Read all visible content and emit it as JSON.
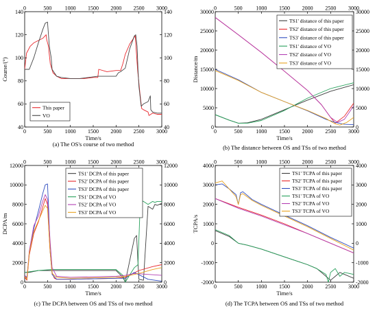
{
  "chart_data": [
    {
      "type": "line",
      "caption": "(a) The OS's course of two method",
      "xlabel": "Time/s",
      "ylabel": "Course/(°)",
      "xlim": [
        0,
        3000
      ],
      "ylim": [
        40,
        140
      ],
      "xticks": [
        0,
        500,
        1000,
        1500,
        2000,
        2500,
        3000
      ],
      "yticks": [
        40,
        60,
        80,
        100,
        120,
        140
      ],
      "right_axis_mirror": true,
      "top_axis_mirror": true,
      "legend": "bottom-left",
      "series": [
        {
          "name": "This paper",
          "color": "#e8262b",
          "x": [
            0,
            40,
            120,
            200,
            300,
            400,
            470,
            480,
            520,
            560,
            620,
            700,
            800,
            950,
            1100,
            1300,
            1500,
            1600,
            1620,
            1800,
            2000,
            2100,
            2150,
            2200,
            2300,
            2400,
            2420,
            2470,
            2520,
            2560,
            2600,
            2700,
            2720,
            2800,
            2900,
            3000
          ],
          "y": [
            90,
            104,
            110,
            113,
            115,
            117,
            120,
            116,
            110,
            95,
            87,
            84,
            82,
            82,
            82,
            82,
            83,
            83,
            90,
            88,
            89,
            89,
            95,
            103,
            112,
            118,
            119,
            90,
            70,
            56,
            55,
            53,
            50,
            52,
            51,
            51
          ]
        },
        {
          "name": "VO",
          "color": "#444444",
          "x": [
            0,
            100,
            200,
            300,
            400,
            450,
            500,
            520,
            540,
            580,
            600,
            700,
            800,
            1000,
            1200,
            1400,
            1600,
            1800,
            2000,
            2050,
            2100,
            2200,
            2300,
            2400,
            2430,
            2460,
            2480,
            2500,
            2550,
            2600,
            2700,
            2750,
            2760,
            2800,
            2900,
            3000
          ],
          "y": [
            90,
            90,
            100,
            113,
            125,
            130,
            131,
            120,
            110,
            100,
            90,
            84,
            83,
            82,
            82,
            83,
            84,
            84,
            84,
            87,
            88,
            91,
            108,
            119,
            120,
            110,
            90,
            75,
            58,
            60,
            62,
            67,
            55,
            53,
            52,
            52
          ]
        }
      ]
    },
    {
      "type": "line",
      "caption": "(b) The distance between OS and TSs of two method",
      "xlabel": "Time/s",
      "ylabel": "Distance/m",
      "xlim": [
        0,
        3000
      ],
      "ylim": [
        0,
        30000
      ],
      "xticks": [
        0,
        500,
        1000,
        1500,
        2000,
        2500,
        3000
      ],
      "yticks": [
        0,
        5000,
        10000,
        15000,
        20000,
        25000,
        30000
      ],
      "right_axis_mirror": true,
      "top_axis_mirror": true,
      "legend": "top-right",
      "series": [
        {
          "name": "TS1' distance of this paper",
          "color": "#3d3d3d",
          "x": [
            0,
            300,
            500,
            700,
            1000,
            1500,
            2000,
            2500,
            3000
          ],
          "y": [
            3200,
            1800,
            1000,
            1100,
            2000,
            4500,
            7000,
            9300,
            11000
          ]
        },
        {
          "name": "TS2' distance of this paper",
          "color": "#e8262b",
          "x": [
            0,
            500,
            1000,
            1500,
            2000,
            2300,
            2500,
            2600,
            2800,
            3000
          ],
          "y": [
            28500,
            24000,
            19400,
            14500,
            9500,
            5800,
            2500,
            1000,
            2800,
            6200
          ]
        },
        {
          "name": "TS3' distance of this paper",
          "color": "#2e4bbf",
          "x": [
            0,
            500,
            1000,
            1500,
            2000,
            2400,
            2600,
            2800,
            3000
          ],
          "y": [
            15000,
            12300,
            9000,
            6600,
            4200,
            2000,
            1200,
            700,
            600
          ]
        },
        {
          "name": "TS1' distance of VO",
          "color": "#27a05b",
          "x": [
            0,
            300,
            500,
            700,
            1000,
            1500,
            2000,
            2500,
            3000
          ],
          "y": [
            3200,
            1800,
            1000,
            1000,
            1700,
            4300,
            7500,
            10000,
            11500
          ]
        },
        {
          "name": "TS2' distance of VO",
          "color": "#b23fb3",
          "x": [
            0,
            500,
            1000,
            1500,
            2000,
            2300,
            2500,
            2650,
            2800,
            3000
          ],
          "y": [
            28500,
            24000,
            19400,
            14500,
            9500,
            5800,
            2500,
            1200,
            2000,
            5500
          ]
        },
        {
          "name": "TS3' distance of VO",
          "color": "#e8a21f",
          "x": [
            0,
            500,
            1000,
            1500,
            2000,
            2400,
            2600,
            2700,
            2850,
            3000
          ],
          "y": [
            14700,
            12100,
            9000,
            6600,
            4300,
            2200,
            800,
            500,
            1200,
            2500
          ]
        }
      ]
    },
    {
      "type": "line",
      "caption": "(c) The DCPA between OS and TSs of two method",
      "xlabel": "Time/s",
      "ylabel": "DCPA/m",
      "xlim": [
        0,
        3000
      ],
      "ylim": [
        0,
        12000
      ],
      "xticks": [
        0,
        500,
        1000,
        1500,
        2000,
        2500,
        3000
      ],
      "yticks": [
        0,
        2000,
        4000,
        6000,
        8000,
        10000,
        12000
      ],
      "right_axis_mirror": true,
      "top_axis_mirror": true,
      "legend": "top",
      "series": [
        {
          "name": "TS1' DCPA of this paper",
          "color": "#3d3d3d",
          "x": [
            0,
            100,
            200,
            300,
            450,
            600,
            1000,
            1500,
            2000,
            2150,
            2200,
            2400,
            2450,
            2480,
            2500,
            2600,
            2700,
            2800,
            2850,
            2900,
            3000
          ],
          "y": [
            1000,
            1000,
            1100,
            1200,
            1200,
            1200,
            1200,
            1200,
            1200,
            500,
            0,
            4500,
            4800,
            2000,
            300,
            200,
            7800,
            7500,
            8000,
            7900,
            8100
          ]
        },
        {
          "name": "TS2' DCPA of this paper",
          "color": "#e8262b",
          "x": [
            0,
            50,
            100,
            200,
            300,
            400,
            450,
            500,
            550,
            600,
            650,
            700,
            1000,
            2000,
            2200,
            2500,
            2800,
            3000
          ],
          "y": [
            500,
            200,
            2800,
            5000,
            6200,
            7800,
            8600,
            8000,
            3500,
            1000,
            400,
            300,
            300,
            400,
            500,
            1200,
            1600,
            1800
          ]
        },
        {
          "name": "TS3' DCPA of this paper",
          "color": "#2e4bbf",
          "x": [
            0,
            50,
            100,
            200,
            300,
            400,
            450,
            500,
            520,
            560,
            600,
            700,
            1000,
            2000,
            2200,
            2400,
            2700,
            3000
          ],
          "y": [
            700,
            500,
            3000,
            5500,
            7300,
            9200,
            10000,
            10100,
            8000,
            3000,
            800,
            300,
            300,
            400,
            400,
            1000,
            300,
            100
          ]
        },
        {
          "name": "TS1' DCPA of VO",
          "color": "#27a05b",
          "x": [
            0,
            300,
            600,
            1000,
            1500,
            2000,
            2150,
            2200,
            2400,
            2480,
            2520,
            2550,
            2600,
            2700,
            2800,
            2850,
            2900,
            3000
          ],
          "y": [
            1000,
            1200,
            1300,
            1300,
            1300,
            1300,
            700,
            0,
            1500,
            1800,
            7000,
            8400,
            8300,
            8000,
            8300,
            8200,
            8300,
            8300
          ]
        },
        {
          "name": "TS2' DCPA of VO",
          "color": "#b23fb3",
          "x": [
            0,
            50,
            100,
            200,
            300,
            400,
            450,
            500,
            560,
            600,
            700,
            1000,
            2000,
            2200,
            2400,
            2700,
            3000
          ],
          "y": [
            700,
            400,
            3200,
            5800,
            6800,
            8400,
            9000,
            8500,
            4000,
            1500,
            600,
            500,
            600,
            700,
            900,
            800,
            700
          ]
        },
        {
          "name": "TS3' DCPA of VO",
          "color": "#e8a21f",
          "x": [
            0,
            50,
            100,
            200,
            300,
            400,
            450,
            500,
            560,
            600,
            700,
            1000,
            2000,
            2200,
            2500,
            2800,
            3000
          ],
          "y": [
            600,
            300,
            3000,
            5200,
            6300,
            7400,
            7900,
            7600,
            3000,
            900,
            500,
            400,
            500,
            600,
            900,
            1300,
            1500
          ]
        }
      ]
    },
    {
      "type": "line",
      "caption": "(d) The TCPA between OS and TSs of two method",
      "xlabel": "Time/s",
      "ylabel": "TCPA/s",
      "xlim": [
        0,
        3000
      ],
      "ylim": [
        -2000,
        4000
      ],
      "xticks": [
        0,
        500,
        1000,
        1500,
        2000,
        2500,
        3000
      ],
      "yticks": [
        -2000,
        -1000,
        0,
        1000,
        2000,
        3000,
        4000
      ],
      "right_axis_mirror": true,
      "top_axis_mirror": true,
      "legend": "top",
      "series": [
        {
          "name": "TS1' TCPA of this paper",
          "color": "#3d3d3d",
          "x": [
            0,
            300,
            500,
            700,
            1000,
            1500,
            2000,
            2200,
            2300,
            2400,
            2500,
            2600,
            2700,
            2800,
            3000
          ],
          "y": [
            650,
            350,
            0,
            -100,
            -300,
            -700,
            -1100,
            -1300,
            -1500,
            -1700,
            -1900,
            -1700,
            -1500,
            -1600,
            -1800
          ]
        },
        {
          "name": "TS2' TCPA of this paper",
          "color": "#e8262b",
          "x": [
            0,
            500,
            1000,
            1500,
            2000,
            2500,
            3000
          ],
          "y": [
            2300,
            1850,
            1450,
            1000,
            500,
            0,
            -500
          ]
        },
        {
          "name": "TS3' TCPA of this paper",
          "color": "#2e4bbf",
          "x": [
            0,
            150,
            300,
            450,
            500,
            550,
            600,
            800,
            1000,
            1500,
            2000,
            2500,
            3000
          ],
          "y": [
            3000,
            3050,
            2800,
            2500,
            2000,
            2600,
            2650,
            2250,
            2000,
            1450,
            900,
            300,
            -250
          ]
        },
        {
          "name": "TS1' TCPA of VO",
          "color": "#27a05b",
          "x": [
            0,
            300,
            500,
            700,
            1000,
            1500,
            2000,
            2200,
            2400,
            2450,
            2500,
            2550,
            2600,
            2700,
            2800,
            3000
          ],
          "y": [
            700,
            400,
            0,
            -100,
            -300,
            -700,
            -1100,
            -1300,
            -1600,
            -2000,
            -1500,
            -1400,
            -1300,
            -1700,
            -1500,
            -1600
          ]
        },
        {
          "name": "TS2' TCPA of VO",
          "color": "#b23fb3",
          "x": [
            0,
            500,
            1000,
            1500,
            2000,
            2500,
            3000
          ],
          "y": [
            2300,
            1800,
            1400,
            950,
            500,
            0,
            -500
          ]
        },
        {
          "name": "TS3' TCPA of VO",
          "color": "#e8a21f",
          "x": [
            0,
            150,
            300,
            450,
            500,
            550,
            600,
            800,
            1000,
            1500,
            2000,
            2500,
            3000
          ],
          "y": [
            3100,
            3200,
            2800,
            2400,
            2000,
            2500,
            2550,
            2200,
            1950,
            1400,
            850,
            250,
            -350
          ]
        }
      ]
    }
  ]
}
